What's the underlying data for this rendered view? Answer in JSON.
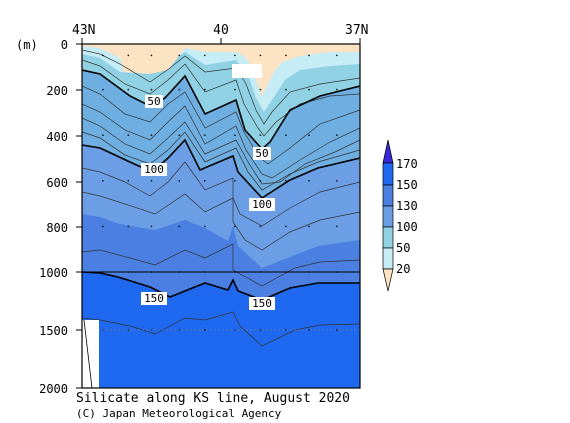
{
  "chart_data": {
    "type": "heatmap",
    "title": "Silicate along KS line, August 2020",
    "credit": "(C) Japan Meteorological Agency",
    "y_unit": "(m)",
    "x_ticks": [
      {
        "lat": 43,
        "label": "43N"
      },
      {
        "lat": 40,
        "label": "40"
      },
      {
        "lat": 37,
        "label": "37N"
      }
    ],
    "x_range_lat": [
      43,
      37
    ],
    "y_ticks_upper": [
      {
        "depth": 0,
        "label": "0"
      },
      {
        "depth": 200,
        "label": "200"
      },
      {
        "depth": 400,
        "label": "400"
      },
      {
        "depth": 600,
        "label": "600"
      },
      {
        "depth": 800,
        "label": "800"
      },
      {
        "depth": 1000,
        "label": "1000"
      }
    ],
    "y_ticks_lower": [
      {
        "depth": 1500,
        "label": "1500"
      },
      {
        "depth": 2000,
        "label": "2000"
      }
    ],
    "y_range_m": [
      0,
      2000
    ],
    "colorbar": {
      "levels": [
        20,
        50,
        100,
        130,
        150,
        170
      ],
      "labels": [
        "20",
        "50",
        "100",
        "130",
        "150",
        "170"
      ],
      "colors": [
        "#fbe3c4",
        "#c6ecf6",
        "#90d2e4",
        "#66b4d8",
        "#6c9ee6",
        "#4b7fe2",
        "#1e69f0",
        "#3c28d8"
      ]
    },
    "contour_labels": [
      {
        "text": "50",
        "lat": 42.4,
        "depth": 245
      },
      {
        "text": "100",
        "lat": 42.4,
        "depth": 545
      },
      {
        "text": "50",
        "lat": 39.4,
        "depth": 475
      },
      {
        "text": "100",
        "lat": 39.4,
        "depth": 690
      },
      {
        "text": "150",
        "lat": 42.4,
        "depth": 1110
      },
      {
        "text": "150",
        "lat": 39.3,
        "depth": 1130
      }
    ],
    "stations_lat": [
      42.55,
      42.0,
      41.5,
      40.9,
      40.35,
      39.7,
      39.15,
      38.6,
      38.1,
      37.5
    ]
  }
}
